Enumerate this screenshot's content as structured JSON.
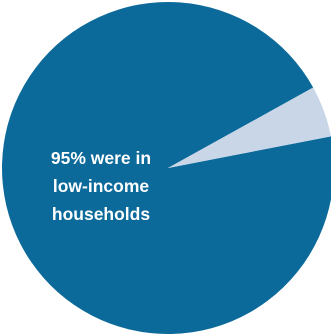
{
  "chart_data": {
    "type": "pie",
    "slices": [
      {
        "value": 95,
        "color": "#0C6A9A"
      },
      {
        "value": 5,
        "color": "#C8D6E8"
      }
    ],
    "annotation": [
      "95% were in",
      "low-income",
      "households"
    ]
  }
}
